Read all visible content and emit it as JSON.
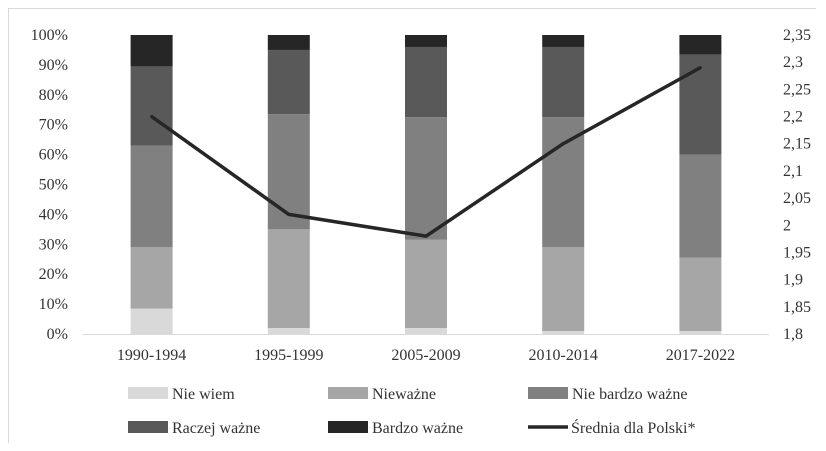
{
  "chart_data": {
    "type": "bar",
    "stacked": true,
    "categories": [
      "1990-1994",
      "1995-1999",
      "2005-2009",
      "2010-2014",
      "2017-2022"
    ],
    "series": [
      {
        "name": "Nie wiem",
        "color": "#d9d9d9",
        "values": [
          8.5,
          2.0,
          2.0,
          1.0,
          1.0
        ]
      },
      {
        "name": "Nieważne",
        "color": "#a6a6a6",
        "values": [
          20.5,
          33.0,
          29.5,
          28.0,
          24.5
        ]
      },
      {
        "name": "Nie bardzo ważne",
        "color": "#808080",
        "values": [
          34.0,
          38.5,
          41.0,
          43.5,
          34.5
        ]
      },
      {
        "name": "Raczej ważne",
        "color": "#595959",
        "values": [
          26.5,
          21.5,
          23.5,
          23.5,
          33.5
        ]
      },
      {
        "name": "Bardzo ważne",
        "color": "#262626",
        "values": [
          10.5,
          5.0,
          4.0,
          4.0,
          6.5
        ]
      }
    ],
    "line_series": {
      "name": "Średnia dla Polski*",
      "color": "#262626",
      "axis": "secondary",
      "values": [
        2.2,
        2.02,
        1.98,
        2.15,
        2.29
      ]
    },
    "ylim": [
      0,
      100
    ],
    "y_ticks": [
      "0%",
      "10%",
      "20%",
      "30%",
      "40%",
      "50%",
      "60%",
      "70%",
      "80%",
      "90%",
      "100%"
    ],
    "y2lim": [
      1.8,
      2.35
    ],
    "y2_ticks": [
      "1,8",
      "1,85",
      "1,9",
      "1,95",
      "2",
      "2,05",
      "2,1",
      "2,15",
      "2,2",
      "2,25",
      "2,3",
      "2,35"
    ],
    "grid": false,
    "legend_position": "bottom"
  }
}
